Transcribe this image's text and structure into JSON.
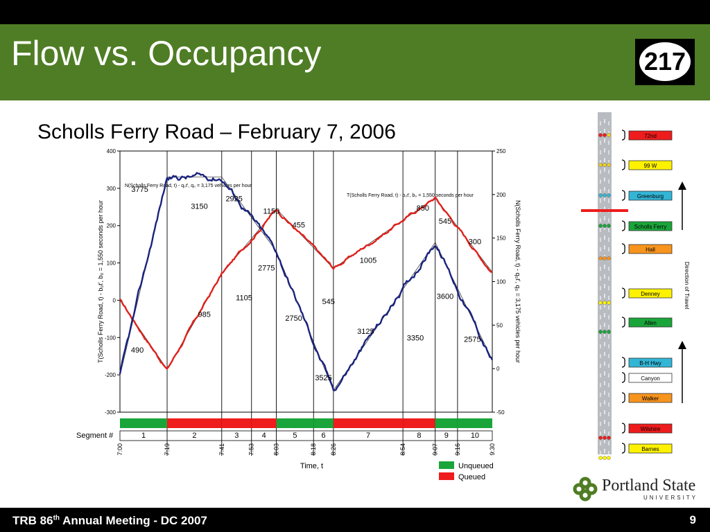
{
  "slide": {
    "title": "Flow vs. Occupancy",
    "subtitle": "Scholls Ferry Road – February 7, 2006",
    "route_number": "217",
    "footer_pre": "TRB 86",
    "footer_sup": "th",
    "footer_post": " Annual Meeting - DC 2007",
    "page_number": "9",
    "logo_text": "Portland State",
    "logo_subtext": "UNIVERSITY"
  },
  "colors": {
    "header": "#4f7d25",
    "blue_series": "#1a237e",
    "red_series": "#e0211b",
    "unqueued": "#1aa53a",
    "queued": "#ee1c1c"
  },
  "chart_data": {
    "type": "line",
    "xlabel": "Time, t",
    "ylabel_left": "T(Scholls Ferry Road, t) - b₀t', b₀ = 1,550 seconds per hour",
    "ylabel_right": "N(Scholls Ferry Road, t) - q₀t', q₀ = 3,175 vehicles per hour",
    "ylim_left": [
      -300,
      400
    ],
    "ylim_right": [
      -50,
      250
    ],
    "left_ticks": [
      "400",
      "300",
      "200",
      "100",
      "0",
      "-100",
      "-200",
      "-300"
    ],
    "right_ticks": [
      "250",
      "200",
      "150",
      "100",
      "50",
      "0",
      "-50"
    ],
    "x_ticks": [
      "7:00",
      "7:19",
      "7:41",
      "7:53",
      "8:03",
      "8:18",
      "8:26",
      "8:54",
      "9:07",
      "9:16",
      "9:30"
    ],
    "grid": false,
    "annotation_left": "N(Scholls Ferry Road, t) - q₀t', q₀ = 3,175 vehicles per hour",
    "annotation_right": "T(Scholls Ferry Road, t) - b₀t', b₀ = 1,550 seconds per hour",
    "series": [
      {
        "axis": "right",
        "x": [
          "7:00",
          "7:19",
          "7:41",
          "8:03",
          "8:26",
          "9:07",
          "9:30"
        ],
        "values": [
          -8,
          220,
          220,
          135,
          -25,
          145,
          10
        ]
      },
      {
        "axis": "left",
        "x": [
          "7:00",
          "7:19",
          "7:41",
          "8:03",
          "8:26",
          "9:07",
          "9:30"
        ],
        "values": [
          0,
          -185,
          70,
          245,
          85,
          275,
          75
        ]
      }
    ],
    "slope_labels_blue": [
      {
        "text": "3775",
        "x": "7:08",
        "y": 290
      },
      {
        "text": "3150",
        "x": "7:32",
        "y": 245
      },
      {
        "text": "2925",
        "x": "7:46",
        "y": 265
      },
      {
        "text": "2775",
        "x": "7:59",
        "y": 80
      },
      {
        "text": "2750",
        "x": "8:10",
        "y": -55
      },
      {
        "text": "3525",
        "x": "8:22",
        "y": -215
      },
      {
        "text": "3125",
        "x": "8:39",
        "y": -90
      },
      {
        "text": "3350",
        "x": "8:59",
        "y": -108
      },
      {
        "text": "3600",
        "x": "9:11",
        "y": 4
      },
      {
        "text": "2575",
        "x": "9:22",
        "y": -112
      }
    ],
    "slope_labels_red": [
      {
        "text": "490",
        "x": "7:07",
        "y": -140
      },
      {
        "text": "985",
        "x": "7:34",
        "y": -45
      },
      {
        "text": "1105",
        "x": "7:50",
        "y": 0
      },
      {
        "text": "1150",
        "x": "8:01",
        "y": 232
      },
      {
        "text": "455",
        "x": "8:12",
        "y": 195
      },
      {
        "text": "545",
        "x": "8:24",
        "y": -10
      },
      {
        "text": "1005",
        "x": "8:40",
        "y": 100
      },
      {
        "text": "850",
        "x": "9:02",
        "y": 240
      },
      {
        "text": "545",
        "x": "9:11",
        "y": 205
      },
      {
        "text": "300",
        "x": "9:23",
        "y": 150
      }
    ],
    "segment_label": "Segment #",
    "segments": [
      {
        "num": "1",
        "start": "7:00",
        "end": "7:19",
        "state": "Unqueued"
      },
      {
        "num": "2",
        "start": "7:19",
        "end": "7:41",
        "state": "Queued"
      },
      {
        "num": "3",
        "start": "7:41",
        "end": "7:53",
        "state": "Queued"
      },
      {
        "num": "4",
        "start": "7:53",
        "end": "8:03",
        "state": "Queued"
      },
      {
        "num": "5",
        "start": "8:03",
        "end": "8:18",
        "state": "Unqueued"
      },
      {
        "num": "6",
        "start": "8:18",
        "end": "8:26",
        "state": "Unqueued"
      },
      {
        "num": "7",
        "start": "8:26",
        "end": "8:54",
        "state": "Queued"
      },
      {
        "num": "8",
        "start": "8:54",
        "end": "9:07",
        "state": "Queued"
      },
      {
        "num": "9",
        "start": "9:07",
        "end": "9:16",
        "state": "Unqueued"
      },
      {
        "num": "10",
        "start": "9:16",
        "end": "9:30",
        "state": "Unqueued"
      }
    ],
    "legend": [
      "Unqueued",
      "Queued"
    ]
  },
  "map": {
    "direction_label": "Direction of Travel",
    "stations": [
      {
        "name": "72nd",
        "color": "#ee1c1c",
        "light": [
          "#ee1c1c",
          "#ee1c1c",
          "#f0d020"
        ]
      },
      {
        "name": "99 W",
        "color": "#fff200",
        "light": [
          "#f0d020",
          "#f0d020",
          "#f0d020"
        ]
      },
      {
        "name": "Greenburg",
        "color": "#33b5d6",
        "light": [
          "#33b5d6",
          "#33b5d6",
          "#33b5d6"
        ]
      },
      {
        "name": "Scholls Ferry",
        "color": "#1aa53a",
        "light": [
          "#1aa53a",
          "#1aa53a",
          "#1aa53a"
        ]
      },
      {
        "name": "Hall",
        "color": "#f7941d",
        "light": []
      },
      {
        "name": "Denney",
        "color": "#fff200",
        "light": []
      },
      {
        "name": "Allen",
        "color": "#1aa53a",
        "light": []
      },
      {
        "name": "B-H Hwy",
        "color": "#33b5d6",
        "light": []
      },
      {
        "name": "Canyon",
        "color": "#ffffff",
        "light": []
      },
      {
        "name": "Walker",
        "color": "#f7941d",
        "light": []
      },
      {
        "name": "Wilshire",
        "color": "#ee1c1c",
        "light": []
      },
      {
        "name": "Barnes",
        "color": "#fff200",
        "light": []
      }
    ]
  }
}
